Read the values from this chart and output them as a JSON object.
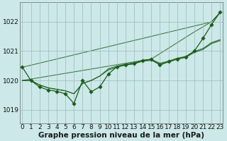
{
  "background_color": "#cce8e8",
  "plot_bg_color": "#cce8e8",
  "grid_color": "#99bbbb",
  "line_color": "#1a5c1a",
  "title": "Graphe pression niveau de la mer (hPa)",
  "ylim": [
    1018.55,
    1022.65
  ],
  "xlim": [
    -0.3,
    23.3
  ],
  "yticks": [
    1019,
    1020,
    1021,
    1022
  ],
  "xticks": [
    0,
    1,
    2,
    3,
    4,
    5,
    6,
    7,
    8,
    9,
    10,
    11,
    12,
    13,
    14,
    15,
    16,
    17,
    18,
    19,
    20,
    21,
    22,
    23
  ],
  "title_fontsize": 7.5,
  "tick_fontsize": 6.5,
  "line_width": 0.9,
  "marker_size": 2.8,
  "smooth_line": [
    1020.45,
    1020.52,
    1020.59,
    1020.66,
    1020.73,
    1020.8,
    1020.87,
    1020.94,
    1021.01,
    1021.08,
    1021.15,
    1021.22,
    1021.29,
    1021.36,
    1021.43,
    1021.5,
    1021.57,
    1021.64,
    1021.71,
    1021.78,
    1021.85,
    1021.92,
    1021.99,
    1022.3
  ],
  "series_cluster": [
    [
      1020.0,
      1020.0,
      1019.85,
      1019.75,
      1019.7,
      1019.65,
      1019.55,
      1019.9,
      1020.0,
      1020.15,
      1020.35,
      1020.45,
      1020.52,
      1020.57,
      1020.65,
      1020.68,
      1020.55,
      1020.62,
      1020.72,
      1020.78,
      1020.95,
      1021.05,
      1021.25,
      1021.35
    ],
    [
      1020.0,
      1020.0,
      1019.85,
      1019.75,
      1019.7,
      1019.65,
      1019.55,
      1019.9,
      1020.0,
      1020.15,
      1020.38,
      1020.47,
      1020.54,
      1020.59,
      1020.67,
      1020.7,
      1020.57,
      1020.64,
      1020.74,
      1020.8,
      1020.97,
      1021.07,
      1021.27,
      1021.37
    ],
    [
      1020.0,
      1020.0,
      1019.85,
      1019.75,
      1019.7,
      1019.65,
      1019.55,
      1019.9,
      1020.0,
      1020.15,
      1020.4,
      1020.49,
      1020.56,
      1020.61,
      1020.69,
      1020.72,
      1020.59,
      1020.66,
      1020.76,
      1020.82,
      1020.99,
      1021.09,
      1021.29,
      1021.39
    ]
  ],
  "main_series_x": [
    0,
    1,
    2,
    3,
    4,
    5,
    6,
    7,
    8,
    9,
    10,
    11,
    12,
    13,
    14,
    15,
    16,
    17,
    18,
    19,
    20,
    21,
    22,
    23
  ],
  "main_series_y": [
    1020.45,
    1020.0,
    1019.78,
    1019.68,
    1019.63,
    1019.55,
    1019.22,
    1020.0,
    1019.62,
    1019.78,
    1020.22,
    1020.47,
    1020.53,
    1020.57,
    1020.68,
    1020.72,
    1020.52,
    1020.65,
    1020.73,
    1020.8,
    1021.0,
    1021.43,
    1021.9,
    1022.32
  ],
  "big_line_x": [
    0,
    15,
    20,
    21,
    22,
    23
  ],
  "big_line_y": [
    1020.0,
    1020.73,
    1021.65,
    1021.82,
    1022.0,
    1022.32
  ]
}
